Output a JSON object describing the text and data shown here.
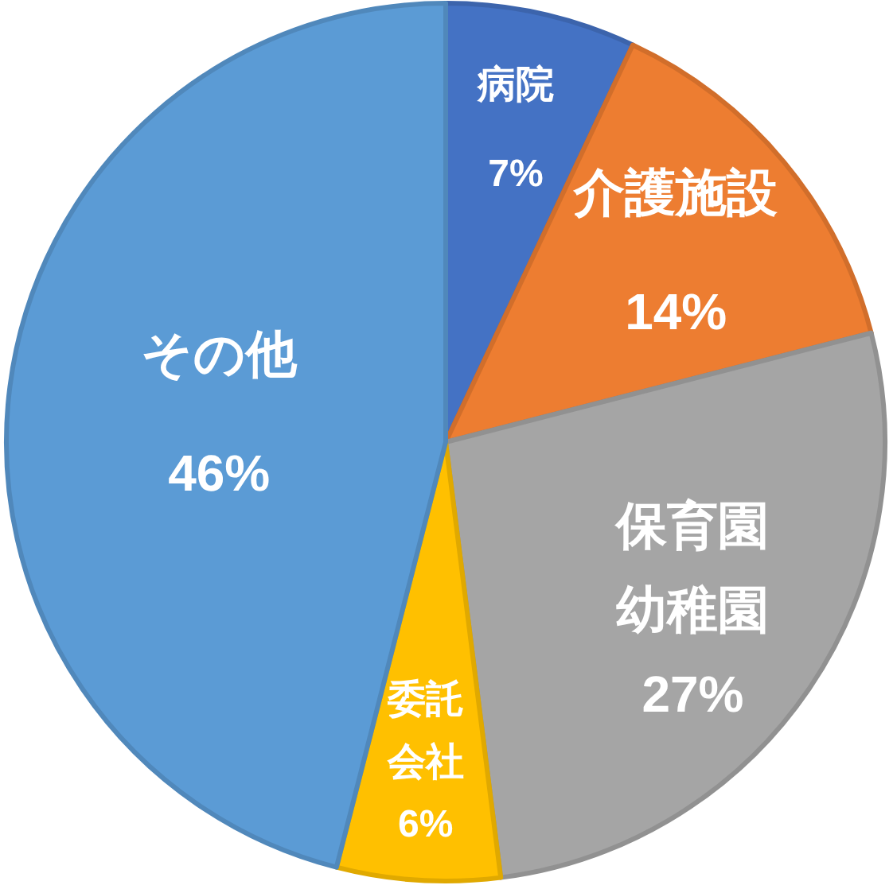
{
  "chart_data": {
    "type": "pie",
    "categories": [
      "病院",
      "介護施設",
      "保育園幼稚園",
      "委託会社",
      "その他"
    ],
    "values": [
      7,
      14,
      27,
      6,
      46
    ],
    "colors": [
      "#4472c4",
      "#ed7d31",
      "#a5a5a5",
      "#ffc000",
      "#5b9bd5"
    ],
    "value_labels": [
      "7%",
      "14%",
      "27%",
      "6%",
      "46%"
    ]
  }
}
